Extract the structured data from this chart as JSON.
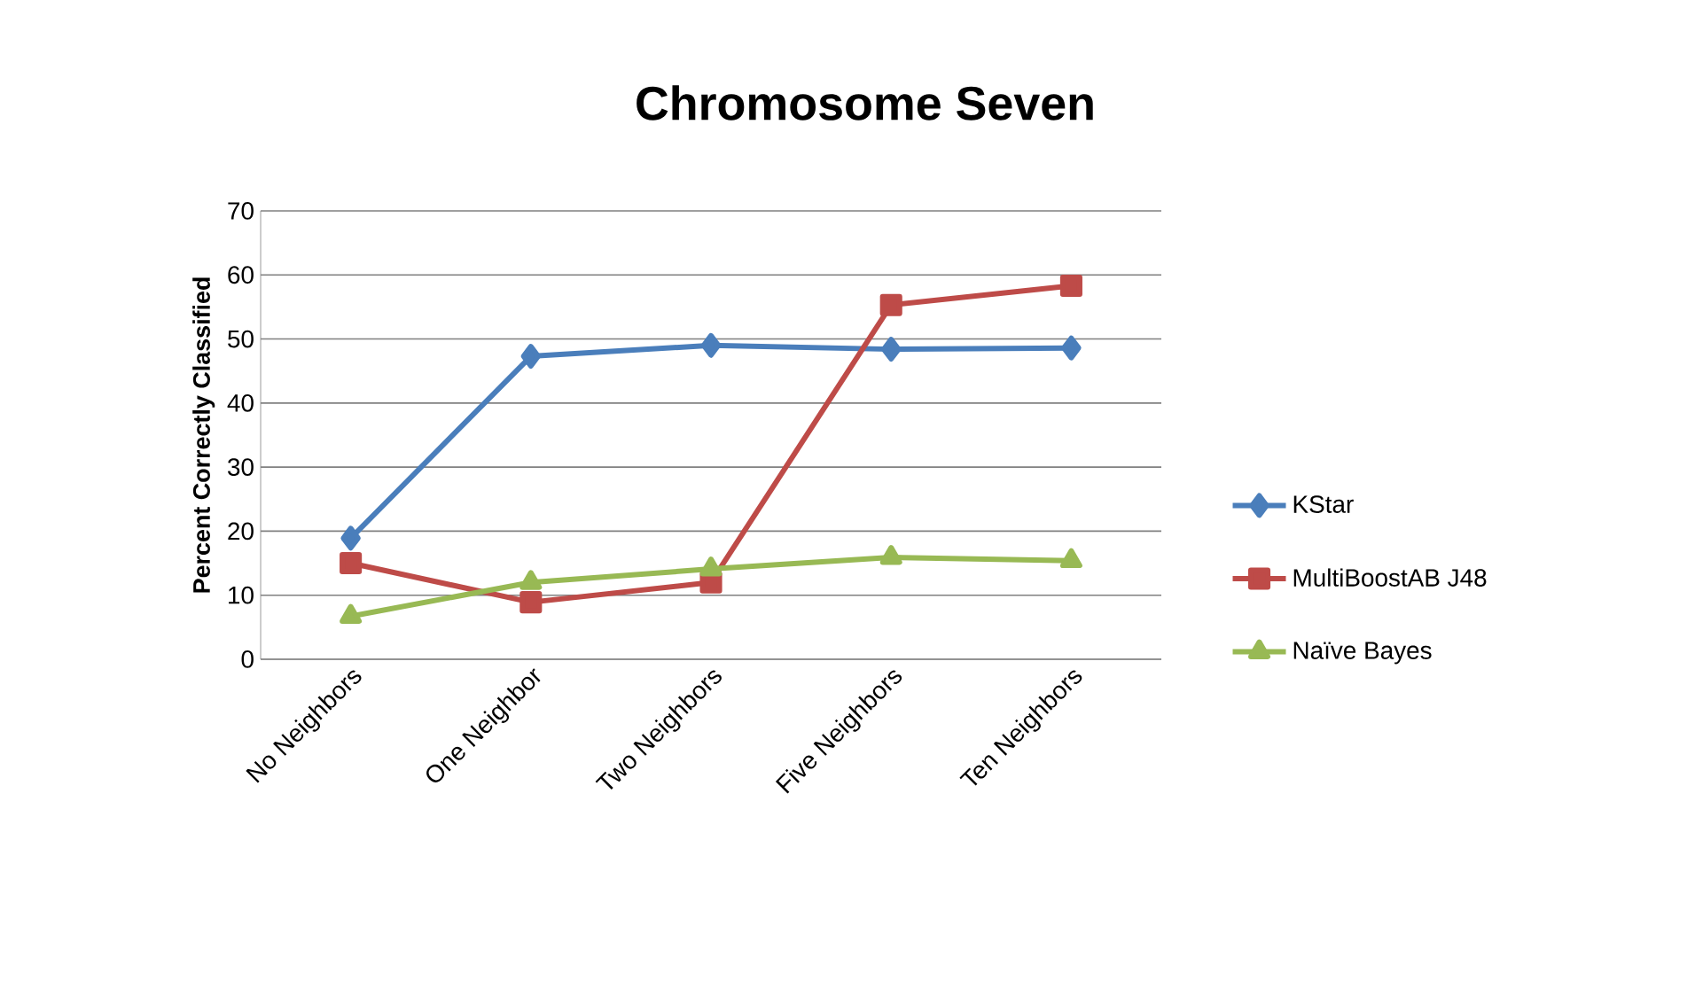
{
  "chart_data": {
    "type": "line",
    "title": "Chromosome Seven",
    "ylabel": "Percent Correctly Classified",
    "categories": [
      "No Neighbors",
      "One Neighbor",
      "Two Neighbors",
      "Five Neighbors",
      "Ten Neighbors"
    ],
    "series": [
      {
        "name": "KStar",
        "color": "#4a7ebb",
        "marker": "diamond",
        "values": [
          18.9,
          47.3,
          49.0,
          48.4,
          48.6
        ]
      },
      {
        "name": "MultiBoostAB J48",
        "color": "#be4b48",
        "marker": "square",
        "values": [
          15.0,
          8.9,
          12.0,
          55.3,
          58.3
        ]
      },
      {
        "name": "Naïve Bayes",
        "color": "#98b954",
        "marker": "triangle",
        "values": [
          6.7,
          12.0,
          14.1,
          15.9,
          15.4
        ]
      }
    ],
    "ylim": [
      0,
      70
    ],
    "yticks": [
      0,
      10,
      20,
      30,
      40,
      50,
      60,
      70
    ],
    "grid": "y",
    "legend": "right",
    "line_style": "solid"
  }
}
